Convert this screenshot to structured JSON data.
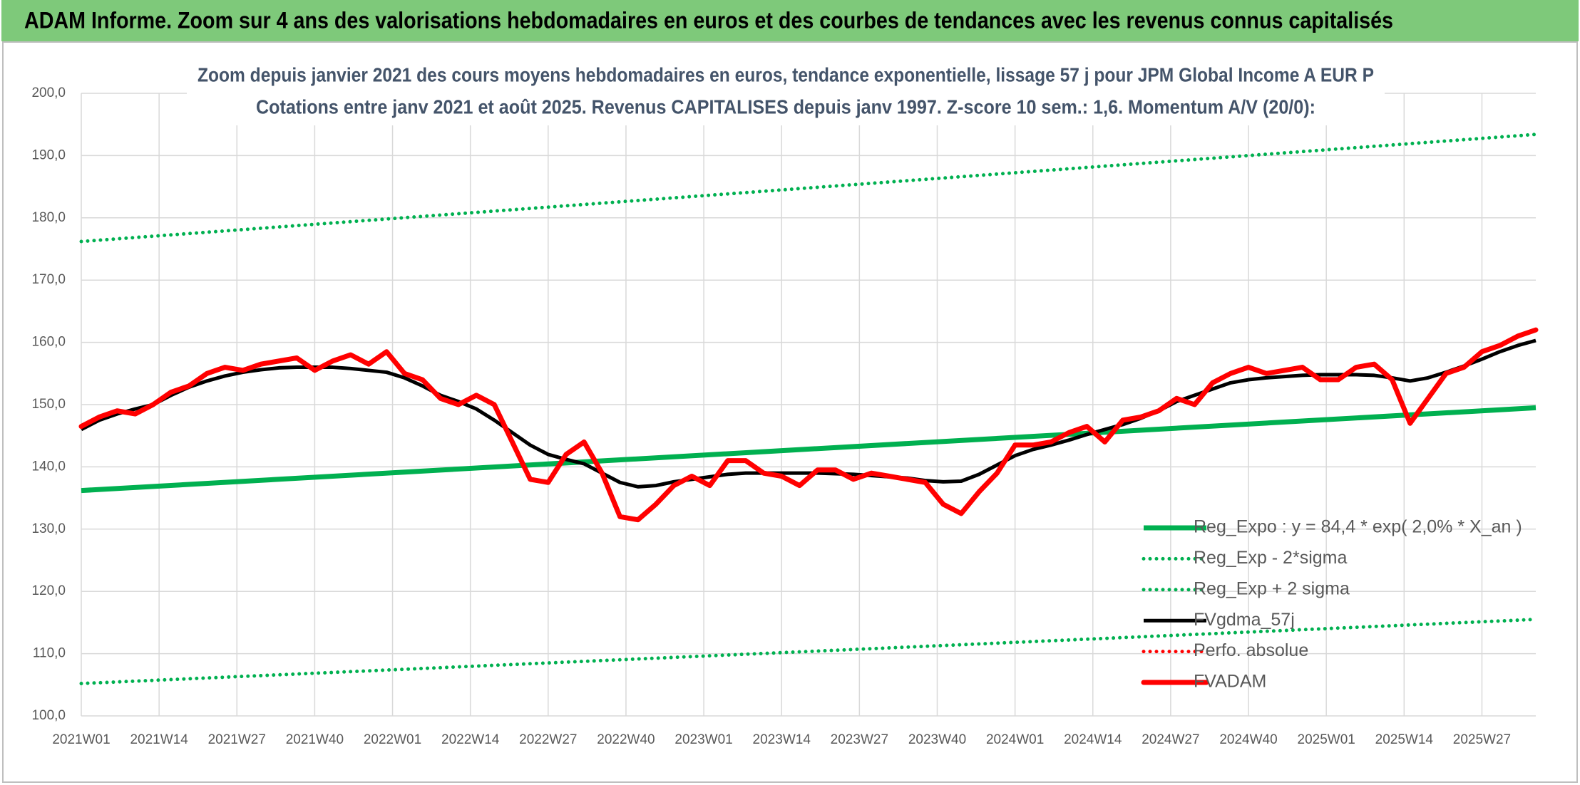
{
  "chart_data": {
    "type": "line",
    "header": "ADAM Informe. Zoom sur 4 ans des valorisations hebdomadaires en euros et des courbes de tendances avec les revenus connus capitalisés",
    "title": "Zoom depuis janvier 2021 des cours moyens hebdomadaires en euros, tendance exponentielle, lissage 57 j pour JPM Global Income A EUR P",
    "subtitle": "Cotations entre janv 2021 et août 2025. Revenus CAPITALISES depuis janv 1997. Z-score 10 sem.: 1,6. Momentum A/V (20/0):",
    "x": [
      0,
      3,
      6,
      9,
      12,
      15,
      18,
      21,
      24,
      27,
      30,
      33,
      36,
      39,
      42,
      45,
      48,
      51,
      54,
      57,
      60,
      63,
      66,
      69,
      72,
      75,
      78,
      81,
      84,
      87,
      90,
      93,
      96,
      99,
      102,
      105,
      108,
      111,
      114,
      117,
      120,
      123,
      126,
      129,
      132,
      135,
      138,
      141,
      144,
      147,
      150,
      153,
      156,
      159,
      162,
      165,
      168,
      171,
      174,
      177,
      180,
      183,
      186,
      189,
      192,
      195,
      198,
      201,
      204,
      207,
      210,
      213,
      216,
      219,
      222,
      225,
      228,
      231,
      234,
      237,
      240,
      243
    ],
    "xlim": [
      0,
      243
    ],
    "xticks": [
      {
        "value": 0,
        "label": "2021W01"
      },
      {
        "value": 13,
        "label": "2021W14"
      },
      {
        "value": 26,
        "label": "2021W27"
      },
      {
        "value": 39,
        "label": "2021W40"
      },
      {
        "value": 52,
        "label": "2022W01"
      },
      {
        "value": 65,
        "label": "2022W14"
      },
      {
        "value": 78,
        "label": "2022W27"
      },
      {
        "value": 91,
        "label": "2022W40"
      },
      {
        "value": 104,
        "label": "2023W01"
      },
      {
        "value": 117,
        "label": "2023W14"
      },
      {
        "value": 130,
        "label": "2023W27"
      },
      {
        "value": 143,
        "label": "2023W40"
      },
      {
        "value": 156,
        "label": "2024W01"
      },
      {
        "value": 169,
        "label": "2024W14"
      },
      {
        "value": 182,
        "label": "2024W27"
      },
      {
        "value": 195,
        "label": "2024W40"
      },
      {
        "value": 208,
        "label": "2025W01"
      },
      {
        "value": 221,
        "label": "2025W14"
      },
      {
        "value": 234,
        "label": "2025W27"
      }
    ],
    "ylim": [
      100,
      200
    ],
    "yticks": [
      {
        "value": 100,
        "label": "100,0"
      },
      {
        "value": 110,
        "label": "110,0"
      },
      {
        "value": 120,
        "label": "120,0"
      },
      {
        "value": 130,
        "label": "130,0"
      },
      {
        "value": 140,
        "label": "140,0"
      },
      {
        "value": 150,
        "label": "150,0"
      },
      {
        "value": 160,
        "label": "160,0"
      },
      {
        "value": 170,
        "label": "170,0"
      },
      {
        "value": 180,
        "label": "180,0"
      },
      {
        "value": 190,
        "label": "190,0"
      },
      {
        "value": 200,
        "label": "200,0"
      }
    ],
    "grid": true,
    "legend": "lower right",
    "series": [
      {
        "name": "Reg_Expo : y = 84,4 * exp( 2,0% *  X_an )",
        "color": "#00b050",
        "style": "solid",
        "x": [
          0,
          243
        ],
        "values": [
          136.2,
          149.5
        ]
      },
      {
        "name": "Reg_Exp - 2*sigma",
        "color": "#00b050",
        "style": "dotted",
        "x": [
          0,
          243
        ],
        "values": [
          105.2,
          115.5
        ]
      },
      {
        "name": "Reg_Exp + 2 sigma",
        "color": "#00b050",
        "style": "dotted",
        "x": [
          0,
          243
        ],
        "values": [
          176.2,
          193.4
        ]
      },
      {
        "name": "FVgdma_57j",
        "color": "#000000",
        "style": "solid",
        "values": [
          146,
          147.5,
          148.5,
          149.3,
          150,
          151.5,
          152.8,
          153.8,
          154.6,
          155.2,
          155.6,
          155.9,
          156,
          156,
          156,
          155.8,
          155.5,
          155.2,
          154.3,
          153,
          151.5,
          150.5,
          149.3,
          147.5,
          145.5,
          143.5,
          142,
          141.2,
          140.5,
          139,
          137.5,
          136.8,
          137,
          137.6,
          138,
          138.4,
          138.8,
          139,
          139,
          139,
          139,
          139,
          138.9,
          138.8,
          138.6,
          138.4,
          138.2,
          137.8,
          137.6,
          137.7,
          138.8,
          140.3,
          141.8,
          142.8,
          143.5,
          144.3,
          145.2,
          146,
          146.8,
          147.8,
          149,
          150.5,
          151.5,
          152.5,
          153.5,
          154,
          154.3,
          154.5,
          154.7,
          154.8,
          154.8,
          154.8,
          154.7,
          154.3,
          153.8,
          154.3,
          155.2,
          156.2,
          157.3,
          158.5,
          159.5,
          160.3
        ]
      },
      {
        "name": "Perfo. absolue",
        "color": "#ff0000",
        "style": "dotted",
        "x": [],
        "values": []
      },
      {
        "name": "FVADAM",
        "color": "#ff0000",
        "style": "bold",
        "values": [
          146.5,
          148,
          149,
          148.5,
          150,
          152,
          153,
          155,
          156,
          155.5,
          156.5,
          157,
          157.5,
          155.5,
          157,
          158,
          156.5,
          158.5,
          155,
          154,
          151,
          150,
          151.5,
          150,
          144,
          138,
          137.5,
          142,
          144,
          139,
          132,
          131.5,
          134,
          137,
          138.5,
          137,
          141,
          141,
          139,
          138.5,
          137,
          139.5,
          139.5,
          138,
          139,
          138.5,
          138,
          137.5,
          134,
          132.5,
          136,
          139,
          143.5,
          143.5,
          144,
          145.5,
          146.5,
          144,
          147.5,
          148,
          149,
          151,
          150,
          153.5,
          155,
          156,
          155,
          155.5,
          156,
          154,
          154,
          156,
          156.5,
          154,
          147,
          151,
          155,
          156,
          158.5,
          159.5,
          161,
          162
        ]
      }
    ]
  }
}
